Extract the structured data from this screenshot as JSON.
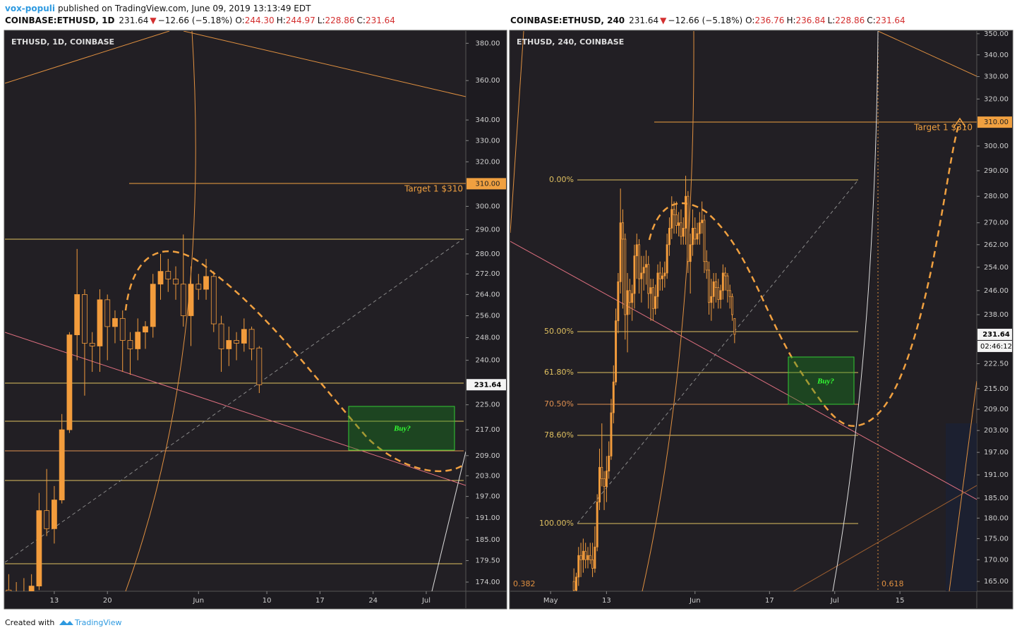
{
  "header": {
    "author": "vox-populi",
    "published": "published on TradingView.com, June 09, 2019 13:13:49 EDT"
  },
  "chart_data": [
    {
      "type": "candlestick",
      "title": "ETHUSD, 1D, COINBASE",
      "quote": {
        "symbol": "COINBASE:ETHUSD, 1D",
        "last": "231.64",
        "arrow": "▼",
        "change": "−12.66 (−5.18%)",
        "ohlc": [
          "O:",
          "244.30",
          "H:",
          "244.97",
          "L:",
          "228.86",
          "C:",
          "231.64"
        ]
      },
      "x": [
        "2019-05-07",
        "2019-05-08",
        "2019-05-09",
        "2019-05-10",
        "2019-05-11",
        "2019-05-12",
        "2019-05-13",
        "2019-05-14",
        "2019-05-15",
        "2019-05-16",
        "2019-05-17",
        "2019-05-18",
        "2019-05-19",
        "2019-05-20",
        "2019-05-21",
        "2019-05-22",
        "2019-05-23",
        "2019-05-24",
        "2019-05-25",
        "2019-05-26",
        "2019-05-27",
        "2019-05-28",
        "2019-05-29",
        "2019-05-30",
        "2019-05-31",
        "2019-06-01",
        "2019-06-02",
        "2019-06-03",
        "2019-06-04",
        "2019-06-05",
        "2019-06-06",
        "2019-06-07",
        "2019-06-08",
        "2019-06-09"
      ],
      "open": [
        172,
        170,
        171,
        170,
        173,
        193,
        188,
        196,
        217,
        249,
        264,
        246,
        245,
        262,
        252,
        255,
        247,
        244,
        250,
        252,
        268,
        273,
        270,
        268,
        256,
        268,
        266,
        271,
        253,
        244,
        247,
        246,
        251,
        244.3
      ],
      "high": [
        176,
        174,
        175,
        176,
        198,
        205,
        200,
        222,
        250,
        282,
        266,
        250,
        266,
        264,
        258,
        258,
        250,
        255,
        254,
        272,
        280,
        278,
        275,
        288,
        275,
        272,
        278,
        273,
        256,
        252,
        250,
        255,
        252,
        244.97
      ],
      "low": [
        168,
        167,
        169,
        166,
        172,
        186,
        184,
        195,
        216,
        240,
        228,
        236,
        236,
        240,
        246,
        236,
        235,
        240,
        244,
        248,
        262,
        265,
        262,
        252,
        245,
        262,
        262,
        250,
        236,
        238,
        240,
        243,
        240,
        228.86
      ],
      "close": [
        170,
        171,
        170,
        173,
        193,
        188,
        196,
        217,
        249,
        264,
        246,
        245,
        262,
        252,
        255,
        247,
        244,
        250,
        252,
        268,
        273,
        270,
        268,
        256,
        268,
        266,
        271,
        253,
        244,
        247,
        246,
        251,
        244,
        231.64
      ],
      "log": true,
      "ylim": [
        171.7,
        386.8
      ],
      "yticks": [
        {
          "value": 174,
          "label": "174.00"
        },
        {
          "value": 179.5,
          "label": "179.50"
        },
        {
          "value": 185,
          "label": "185.00"
        },
        {
          "value": 191,
          "label": "191.00"
        },
        {
          "value": 197,
          "label": "197.00"
        },
        {
          "value": 203,
          "label": "203.00"
        },
        {
          "value": 209,
          "label": "209.00"
        },
        {
          "value": 217,
          "label": "217.00"
        },
        {
          "value": 225,
          "label": "225.00"
        },
        {
          "value": 240,
          "label": "240.00"
        },
        {
          "value": 248,
          "label": "248.00"
        },
        {
          "value": 256,
          "label": "256.00"
        },
        {
          "value": 264,
          "label": "264.00"
        },
        {
          "value": 272,
          "label": "272.00"
        },
        {
          "value": 280,
          "label": "280.00"
        },
        {
          "value": 290,
          "label": "290.00"
        },
        {
          "value": 300,
          "label": "300.00"
        },
        {
          "value": 320,
          "label": "320.00"
        },
        {
          "value": 330,
          "label": "330.00"
        },
        {
          "value": 340,
          "label": "340.00"
        },
        {
          "value": 360,
          "label": "360.00"
        },
        {
          "value": 380,
          "label": "380.00"
        }
      ],
      "xlim": [
        "2019-05-06T12:00Z",
        "2019-07-06T05:00Z"
      ],
      "xticks": [
        {
          "value": "2019-05-13",
          "label": "13"
        },
        {
          "value": "2019-05-20",
          "label": "20"
        },
        {
          "value": "2019-06-01",
          "label": "Jun"
        },
        {
          "value": "2019-06-10",
          "label": "10"
        },
        {
          "value": "2019-06-17",
          "label": "17"
        },
        {
          "value": "2019-06-24",
          "label": "24"
        },
        {
          "value": "2019-07-01",
          "label": "Jul"
        }
      ],
      "color": "#f39c3c",
      "last_price": {
        "value": 231.64,
        "label": "231.64"
      },
      "target_price": {
        "value": 310,
        "label": "310.00"
      },
      "annotations": {
        "target": "Target 1 $310",
        "buy": "Buy?"
      }
    },
    {
      "type": "candlestick",
      "title": "ETHUSD, 240, COINBASE",
      "quote": {
        "symbol": "COINBASE:ETHUSD, 240",
        "last": "231.64",
        "arrow": "▼",
        "change": "−12.66 (−5.18%)",
        "ohlc": [
          "O:",
          "236.76",
          "H:",
          "236.84",
          "L:",
          "228.86",
          "C:",
          "231.64"
        ]
      },
      "x": [
        "2019-05-06T00:00Z",
        "2019-05-06T12:00Z",
        "2019-05-07T00:00Z",
        "2019-05-07T12:00Z",
        "2019-05-08T00:00Z",
        "2019-05-08T12:00Z",
        "2019-05-09T00:00Z",
        "2019-05-09T12:00Z",
        "2019-05-10T00:00Z",
        "2019-05-10T12:00Z",
        "2019-05-11T00:00Z",
        "2019-05-11T12:00Z",
        "2019-05-12T00:00Z",
        "2019-05-12T12:00Z",
        "2019-05-13T00:00Z",
        "2019-05-13T12:00Z",
        "2019-05-14T00:00Z",
        "2019-05-14T12:00Z",
        "2019-05-15T00:00Z",
        "2019-05-15T12:00Z",
        "2019-05-16T00:00Z",
        "2019-05-16T12:00Z",
        "2019-05-17T00:00Z",
        "2019-05-17T12:00Z",
        "2019-05-18T00:00Z",
        "2019-05-18T12:00Z",
        "2019-05-19T00:00Z",
        "2019-05-19T12:00Z",
        "2019-05-20T00:00Z",
        "2019-05-20T12:00Z",
        "2019-05-21T00:00Z",
        "2019-05-21T12:00Z",
        "2019-05-22T00:00Z",
        "2019-05-22T12:00Z",
        "2019-05-23T00:00Z",
        "2019-05-23T12:00Z",
        "2019-05-24T00:00Z",
        "2019-05-24T12:00Z",
        "2019-05-25T00:00Z",
        "2019-05-25T12:00Z",
        "2019-05-26T00:00Z",
        "2019-05-26T12:00Z",
        "2019-05-27T00:00Z",
        "2019-05-27T12:00Z",
        "2019-05-28T00:00Z",
        "2019-05-28T12:00Z",
        "2019-05-29T00:00Z",
        "2019-05-29T12:00Z",
        "2019-05-30T00:00Z",
        "2019-05-30T12:00Z",
        "2019-05-31T00:00Z",
        "2019-05-31T12:00Z",
        "2019-06-01T00:00Z",
        "2019-06-01T12:00Z",
        "2019-06-02T00:00Z",
        "2019-06-02T12:00Z",
        "2019-06-03T00:00Z",
        "2019-06-03T12:00Z",
        "2019-06-04T00:00Z",
        "2019-06-04T12:00Z",
        "2019-06-05T00:00Z",
        "2019-06-05T12:00Z",
        "2019-06-06T00:00Z",
        "2019-06-06T12:00Z",
        "2019-06-07T00:00Z",
        "2019-06-07T12:00Z",
        "2019-06-08T00:00Z",
        "2019-06-08T12:00Z",
        "2019-06-09T00:00Z",
        "2019-06-09T12:00Z"
      ],
      "open": [
        165,
        163,
        166,
        171,
        170,
        172,
        170,
        171,
        170,
        168,
        173,
        184,
        193,
        190,
        188,
        192,
        196,
        208,
        217,
        236,
        249,
        270,
        264,
        238,
        246,
        242,
        245,
        258,
        262,
        250,
        252,
        254,
        255,
        245,
        247,
        240,
        244,
        252,
        250,
        251,
        252,
        262,
        268,
        275,
        273,
        269,
        270,
        265,
        268,
        280,
        256,
        262,
        268,
        264,
        266,
        270,
        271,
        256,
        253,
        242,
        244,
        249,
        247,
        243,
        246,
        252,
        251,
        246,
        244,
        236.76
      ],
      "high": [
        168,
        167,
        173,
        174,
        175,
        174,
        173,
        174,
        174,
        178,
        186,
        198,
        205,
        192,
        196,
        200,
        212,
        222,
        240,
        252,
        283,
        275,
        266,
        252,
        250,
        248,
        262,
        266,
        264,
        258,
        258,
        260,
        258,
        250,
        250,
        248,
        255,
        256,
        254,
        256,
        266,
        272,
        280,
        278,
        278,
        274,
        275,
        272,
        288,
        282,
        266,
        275,
        272,
        270,
        274,
        278,
        273,
        260,
        256,
        250,
        252,
        252,
        250,
        248,
        255,
        254,
        252,
        248,
        245,
        236.84
      ],
      "low": [
        160,
        161,
        164,
        166,
        167,
        168,
        168,
        169,
        166,
        167,
        172,
        182,
        188,
        182,
        184,
        190,
        195,
        205,
        216,
        232,
        245,
        240,
        230,
        226,
        238,
        236,
        240,
        250,
        245,
        242,
        246,
        248,
        240,
        236,
        236,
        238,
        240,
        246,
        246,
        247,
        250,
        258,
        264,
        266,
        266,
        265,
        262,
        262,
        262,
        252,
        245,
        258,
        262,
        262,
        262,
        266,
        252,
        250,
        238,
        236,
        240,
        242,
        240,
        240,
        243,
        246,
        242,
        240,
        236,
        228.86
      ],
      "close": [
        163,
        166,
        171,
        170,
        172,
        170,
        171,
        170,
        168,
        173,
        184,
        193,
        190,
        188,
        192,
        196,
        208,
        217,
        236,
        249,
        270,
        264,
        238,
        246,
        242,
        245,
        258,
        262,
        250,
        252,
        254,
        255,
        245,
        247,
        240,
        244,
        252,
        250,
        251,
        252,
        262,
        268,
        275,
        273,
        269,
        270,
        265,
        268,
        280,
        256,
        262,
        268,
        264,
        266,
        270,
        271,
        256,
        253,
        242,
        244,
        249,
        247,
        243,
        246,
        252,
        251,
        246,
        244,
        238,
        231.64
      ],
      "log": true,
      "ylim": [
        162.8,
        351.3
      ],
      "yticks": [
        {
          "value": 165,
          "label": "165.00"
        },
        {
          "value": 170,
          "label": "170.00"
        },
        {
          "value": 175,
          "label": "175.00"
        },
        {
          "value": 180,
          "label": "180.00"
        },
        {
          "value": 185,
          "label": "185.00"
        },
        {
          "value": 191,
          "label": "191.00"
        },
        {
          "value": 197,
          "label": "197.00"
        },
        {
          "value": 203,
          "label": "203.00"
        },
        {
          "value": 209,
          "label": "209.00"
        },
        {
          "value": 215,
          "label": "215.00"
        },
        {
          "value": 222.5,
          "label": "222.50"
        },
        {
          "value": 238,
          "label": "238.00"
        },
        {
          "value": 246,
          "label": "246.00"
        },
        {
          "value": 254,
          "label": "254.00"
        },
        {
          "value": 262,
          "label": "262.00"
        },
        {
          "value": 270,
          "label": "270.00"
        },
        {
          "value": 280,
          "label": "280.00"
        },
        {
          "value": 290,
          "label": "290.00"
        },
        {
          "value": 300,
          "label": "300.00"
        },
        {
          "value": 320,
          "label": "320.00"
        },
        {
          "value": 330,
          "label": "330.00"
        },
        {
          "value": 340,
          "label": "340.00"
        },
        {
          "value": 350,
          "label": "350.00"
        }
      ],
      "xlim": [
        "2019-04-22T08:00Z",
        "2019-07-31T12:00Z"
      ],
      "xticks": [
        {
          "value": "2019-05-01",
          "label": "May"
        },
        {
          "value": "2019-05-13",
          "label": "13"
        },
        {
          "value": "2019-06-01",
          "label": "Jun"
        },
        {
          "value": "2019-06-17",
          "label": "17"
        },
        {
          "value": "2019-07-01",
          "label": "Jul"
        },
        {
          "value": "2019-07-15",
          "label": "15"
        }
      ],
      "color": "#f39c3c",
      "last_price": {
        "value": 231.64,
        "label": "231.64"
      },
      "countdown": "02:46:12",
      "target_price": {
        "value": 310,
        "label": "310.00"
      },
      "annotations": {
        "target": "Target 1 $310",
        "buy": "Buy?",
        "fib": [
          "0.00%",
          "50.00%",
          "61.80%",
          "70.50%",
          "78.60%",
          "100.00%"
        ],
        "fib_time": [
          "0.382",
          "0.618"
        ]
      }
    }
  ],
  "footer": {
    "created": "Created with",
    "brand": "TradingView"
  }
}
